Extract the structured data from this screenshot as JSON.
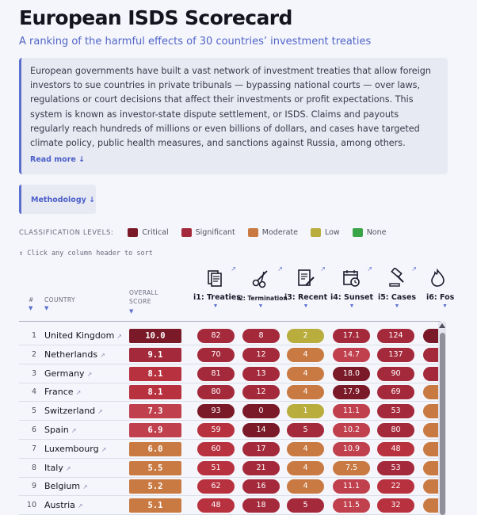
{
  "header": {
    "title": "European ISDS Scorecard",
    "subtitle": "A ranking of the harmful effects of 30 countries’ investment treaties"
  },
  "intro": {
    "text": "European governments have built a vast network of investment treaties that allow foreign investors to sue countries in private tribunals — bypassing national courts — over laws, regulations or court decisions that affect their investments or profit expectations. This system is known as investor-state dispute settlement, or ISDS. Claims and payouts regularly reach hundreds of millions or even billions of dollars, and cases have targeted climate policy, public health measures, and sanctions against Russia, among others.",
    "read_more": "Read more ↓"
  },
  "methodology": {
    "label": "Methodology ↓"
  },
  "legend": {
    "title": "CLASSIFICATION LEVELS:",
    "items": [
      {
        "label": "Critical",
        "color": "#7a1a28"
      },
      {
        "label": "Significant",
        "color": "#a42a3b"
      },
      {
        "label": "Moderate",
        "color": "#c97a42"
      },
      {
        "label": "Low",
        "color": "#b9ad3d"
      },
      {
        "label": "None",
        "color": "#3aa448"
      }
    ]
  },
  "sort_hint": "↕ Click any column header to sort",
  "table": {
    "headers": {
      "rank": "#",
      "country": "COUNTRY",
      "overall_1": "OVERALL",
      "overall_2": "SCORE",
      "sort_arrow": "▼"
    },
    "columns": [
      {
        "label": "i1: Treaties",
        "icon": "document-stack-icon"
      },
      {
        "label": "i2: Termination",
        "icon": "scissors-icon"
      },
      {
        "label": "i3: Recent",
        "icon": "document-pen-icon"
      },
      {
        "label": "i4: Sunset",
        "icon": "calendar-clock-icon"
      },
      {
        "label": "i5: Cases",
        "icon": "gavel-icon"
      },
      {
        "label": "i6: Fos",
        "icon": "flame-icon"
      }
    ],
    "rows": [
      {
        "rank": "1",
        "country": "United Kingdom",
        "score": "10.0",
        "score_color": "#7a1a28",
        "cells": [
          {
            "v": "82",
            "c": "#a42a3b"
          },
          {
            "v": "8",
            "c": "#a42a3b"
          },
          {
            "v": "2",
            "c": "#b9ad3d"
          },
          {
            "v": "17.1",
            "c": "#a42a3b"
          },
          {
            "v": "124",
            "c": "#a42a3b"
          },
          {
            "v": "",
            "c": "#7a1a28"
          }
        ]
      },
      {
        "rank": "2",
        "country": "Netherlands",
        "score": "9.1",
        "score_color": "#a42a3b",
        "cells": [
          {
            "v": "70",
            "c": "#a42a3b"
          },
          {
            "v": "12",
            "c": "#a42a3b"
          },
          {
            "v": "4",
            "c": "#c97a42"
          },
          {
            "v": "14.7",
            "c": "#c0404e"
          },
          {
            "v": "137",
            "c": "#a42a3b"
          },
          {
            "v": "",
            "c": "#a42a3b"
          }
        ]
      },
      {
        "rank": "3",
        "country": "Germany",
        "score": "8.1",
        "score_color": "#b8313f",
        "cells": [
          {
            "v": "81",
            "c": "#a42a3b"
          },
          {
            "v": "13",
            "c": "#a42a3b"
          },
          {
            "v": "4",
            "c": "#c97a42"
          },
          {
            "v": "18.0",
            "c": "#7a1a28"
          },
          {
            "v": "90",
            "c": "#a42a3b"
          },
          {
            "v": "",
            "c": "#a42a3b"
          }
        ]
      },
      {
        "rank": "4",
        "country": "France",
        "score": "8.1",
        "score_color": "#b8313f",
        "cells": [
          {
            "v": "80",
            "c": "#a42a3b"
          },
          {
            "v": "12",
            "c": "#a42a3b"
          },
          {
            "v": "4",
            "c": "#c97a42"
          },
          {
            "v": "17.9",
            "c": "#7a1a28"
          },
          {
            "v": "69",
            "c": "#a42a3b"
          },
          {
            "v": "",
            "c": "#c97a42"
          }
        ]
      },
      {
        "rank": "5",
        "country": "Switzerland",
        "score": "7.3",
        "score_color": "#c0404e",
        "cells": [
          {
            "v": "93",
            "c": "#7a1a28"
          },
          {
            "v": "0",
            "c": "#7a1a28"
          },
          {
            "v": "1",
            "c": "#b9ad3d"
          },
          {
            "v": "11.1",
            "c": "#c0404e"
          },
          {
            "v": "53",
            "c": "#a42a3b"
          },
          {
            "v": "",
            "c": "#c97a42"
          }
        ]
      },
      {
        "rank": "6",
        "country": "Spain",
        "score": "6.9",
        "score_color": "#c0404e",
        "cells": [
          {
            "v": "59",
            "c": "#b8313f"
          },
          {
            "v": "14",
            "c": "#7a1a28"
          },
          {
            "v": "5",
            "c": "#a42a3b"
          },
          {
            "v": "10.2",
            "c": "#c0404e"
          },
          {
            "v": "80",
            "c": "#a42a3b"
          },
          {
            "v": "",
            "c": "#c97a42"
          }
        ]
      },
      {
        "rank": "7",
        "country": "Luxembourg",
        "score": "6.0",
        "score_color": "#c97a42",
        "cells": [
          {
            "v": "60",
            "c": "#b8313f"
          },
          {
            "v": "17",
            "c": "#a42a3b"
          },
          {
            "v": "4",
            "c": "#c97a42"
          },
          {
            "v": "10.9",
            "c": "#c0404e"
          },
          {
            "v": "48",
            "c": "#b8313f"
          },
          {
            "v": "",
            "c": "#c97a42"
          }
        ]
      },
      {
        "rank": "8",
        "country": "Italy",
        "score": "5.5",
        "score_color": "#c97a42",
        "cells": [
          {
            "v": "51",
            "c": "#b8313f"
          },
          {
            "v": "21",
            "c": "#a42a3b"
          },
          {
            "v": "4",
            "c": "#c97a42"
          },
          {
            "v": "7.5",
            "c": "#c97a42"
          },
          {
            "v": "53",
            "c": "#a42a3b"
          },
          {
            "v": "",
            "c": "#c97a42"
          }
        ]
      },
      {
        "rank": "9",
        "country": "Belgium",
        "score": "5.2",
        "score_color": "#c97a42",
        "cells": [
          {
            "v": "62",
            "c": "#b8313f"
          },
          {
            "v": "16",
            "c": "#a42a3b"
          },
          {
            "v": "4",
            "c": "#c97a42"
          },
          {
            "v": "11.1",
            "c": "#c0404e"
          },
          {
            "v": "22",
            "c": "#b8313f"
          },
          {
            "v": "",
            "c": "#c97a42"
          }
        ]
      },
      {
        "rank": "10",
        "country": "Austria",
        "score": "5.1",
        "score_color": "#c97a42",
        "cells": [
          {
            "v": "48",
            "c": "#b8313f"
          },
          {
            "v": "18",
            "c": "#a42a3b"
          },
          {
            "v": "5",
            "c": "#a42a3b"
          },
          {
            "v": "11.5",
            "c": "#c0404e"
          },
          {
            "v": "32",
            "c": "#b8313f"
          },
          {
            "v": "",
            "c": "#c97a42"
          }
        ]
      }
    ]
  }
}
